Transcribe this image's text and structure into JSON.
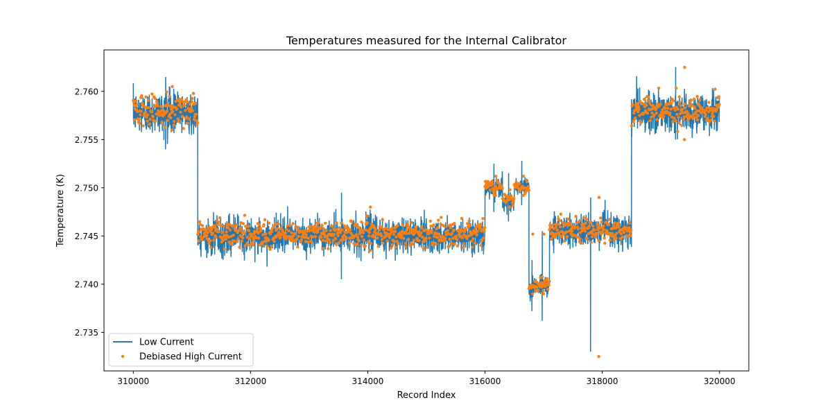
{
  "chart_data": {
    "type": "line",
    "title": "Temperatures measured for the Internal Calibrator",
    "xlabel": "Record Index",
    "ylabel": "Temperature (K)",
    "xlim": [
      309500,
      320500
    ],
    "ylim": [
      2.731,
      2.7643
    ],
    "xticks": [
      310000,
      312000,
      314000,
      316000,
      318000,
      320000
    ],
    "xtick_labels": [
      "310000",
      "312000",
      "314000",
      "316000",
      "318000",
      "320000"
    ],
    "yticks": [
      2.735,
      2.74,
      2.745,
      2.75,
      2.755,
      2.76
    ],
    "ytick_labels": [
      "2.735",
      "2.740",
      "2.745",
      "2.750",
      "2.755",
      "2.760"
    ],
    "grid": false,
    "legend_position": "lower-left",
    "colors": {
      "low_current": "#1f77b4",
      "debiased_high_current": "#ff7f0e"
    },
    "series": [
      {
        "name": "Low Current",
        "style": "line",
        "segments": [
          {
            "x_start": 310000,
            "x_end": 311100,
            "mean": 2.7578,
            "spread": 0.002,
            "min": 2.754,
            "max": 2.7615
          },
          {
            "x_start": 311100,
            "x_end": 316000,
            "mean": 2.745,
            "spread": 0.0016,
            "min": 2.7405,
            "max": 2.7495
          },
          {
            "x_start": 316000,
            "x_end": 316300,
            "mean": 2.75,
            "spread": 0.001,
            "min": 2.7475,
            "max": 2.7525
          },
          {
            "x_start": 316300,
            "x_end": 316500,
            "mean": 2.7485,
            "spread": 0.001,
            "min": 2.7465,
            "max": 2.7515
          },
          {
            "x_start": 316500,
            "x_end": 316750,
            "mean": 2.7502,
            "spread": 0.0008,
            "min": 2.7482,
            "max": 2.7528
          },
          {
            "x_start": 316750,
            "x_end": 316850,
            "mean": 2.7395,
            "spread": 0.0012,
            "min": 2.7372,
            "max": 2.7425
          },
          {
            "x_start": 316850,
            "x_end": 317100,
            "mean": 2.7398,
            "spread": 0.001,
            "min": 2.7362,
            "max": 2.7455
          },
          {
            "x_start": 317100,
            "x_end": 318500,
            "mean": 2.7455,
            "spread": 0.0015,
            "min": 2.733,
            "max": 2.749
          },
          {
            "x_start": 318500,
            "x_end": 320000,
            "mean": 2.7578,
            "spread": 0.0018,
            "min": 2.755,
            "max": 2.7625
          }
        ]
      },
      {
        "name": "Debiased High Current",
        "style": "markers",
        "segments": [
          {
            "x_start": 310000,
            "x_end": 311100,
            "mean": 2.758,
            "spread": 0.0018,
            "min": 2.756,
            "max": 2.7605
          },
          {
            "x_start": 311100,
            "x_end": 316000,
            "mean": 2.7452,
            "spread": 0.0015,
            "min": 2.7435,
            "max": 2.748
          },
          {
            "x_start": 316000,
            "x_end": 316300,
            "mean": 2.7501,
            "spread": 0.0008,
            "min": 2.7492,
            "max": 2.7512
          },
          {
            "x_start": 316300,
            "x_end": 316500,
            "mean": 2.7487,
            "spread": 0.0008,
            "min": 2.748,
            "max": 2.7498
          },
          {
            "x_start": 316500,
            "x_end": 316750,
            "mean": 2.7501,
            "spread": 0.0007,
            "min": 2.7492,
            "max": 2.7512
          },
          {
            "x_start": 316750,
            "x_end": 316850,
            "mean": 2.7398,
            "spread": 0.0008,
            "min": 2.739,
            "max": 2.7452
          },
          {
            "x_start": 316850,
            "x_end": 317100,
            "mean": 2.74,
            "spread": 0.0008,
            "min": 2.739,
            "max": 2.7452
          },
          {
            "x_start": 317100,
            "x_end": 318500,
            "mean": 2.7456,
            "spread": 0.0014,
            "min": 2.7325,
            "max": 2.749
          },
          {
            "x_start": 318500,
            "x_end": 320000,
            "mean": 2.758,
            "spread": 0.0016,
            "min": 2.755,
            "max": 2.7625
          }
        ]
      }
    ]
  }
}
